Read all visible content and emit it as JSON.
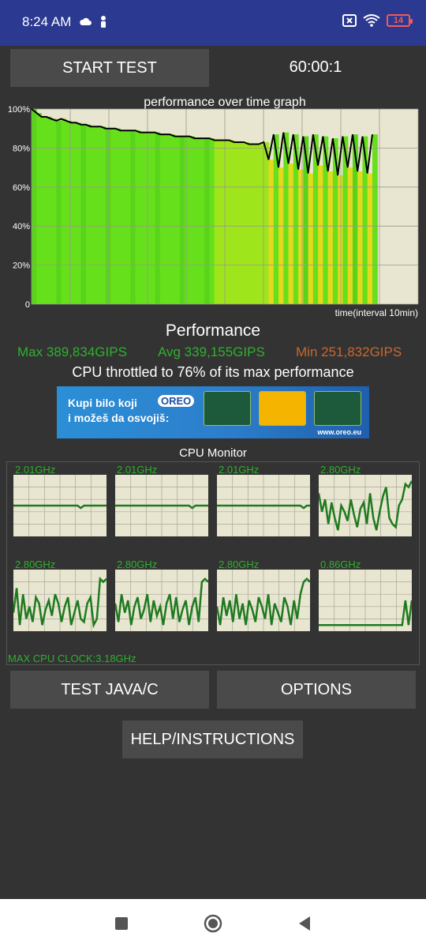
{
  "status_bar": {
    "time": "8:24 AM",
    "icons_left": [
      "cloud-icon",
      "person-pin-icon"
    ],
    "icons_right": [
      "no-sim-icon",
      "wifi-icon",
      "battery-icon"
    ],
    "battery_level": "14",
    "battery_color": "#f05a5a"
  },
  "controls": {
    "start_label": "START TEST",
    "timer": "60:00:1"
  },
  "perf_graph": {
    "title": "performance over time graph",
    "y_ticks": [
      "100%",
      "80%",
      "60%",
      "40%",
      "20%",
      "0"
    ],
    "x_label": "time(interval 10min)"
  },
  "chart_data": {
    "type": "line",
    "title": "performance over time graph",
    "xlabel": "time(interval 10min)",
    "ylabel": "",
    "ylim": [
      0,
      100
    ],
    "grid": true,
    "series": [
      {
        "values": [
          100,
          98,
          96,
          96,
          95,
          94,
          95,
          94,
          93,
          93,
          92,
          92,
          91,
          91,
          91,
          90,
          90,
          90,
          89,
          89,
          89,
          89,
          88,
          88,
          88,
          88,
          87,
          87,
          87,
          86,
          86,
          86,
          86,
          85,
          85,
          85,
          85,
          84,
          84,
          84,
          84,
          83,
          83,
          83,
          82,
          82,
          82,
          83,
          74,
          87,
          70,
          88,
          72,
          87,
          69,
          86,
          67,
          87,
          71,
          86,
          68,
          85,
          66,
          86,
          70,
          87,
          68,
          86,
          67,
          87
        ]
      }
    ]
  },
  "performance": {
    "title": "Performance",
    "max": "Max 389,834GIPS",
    "avg": "Avg 339,155GIPS",
    "min": "Min 251,832GIPS",
    "throttle": "CPU throttled to 76% of its max performance",
    "max_color": "#2db12d",
    "min_color": "#c9672e"
  },
  "ad": {
    "line1": "Kupi bilo koji",
    "brand": "OREO",
    "line2": "i možeš da osvojiš:",
    "url": "www.oreo.eu"
  },
  "cpu_monitor": {
    "title": "CPU Monitor",
    "cores": [
      {
        "freq": "2.01GHz",
        "values": [
          50,
          50,
          50,
          50,
          50,
          50,
          50,
          50,
          50,
          50,
          50,
          50,
          50,
          50,
          50,
          50,
          50,
          50,
          50,
          50,
          50,
          46,
          50,
          50,
          50,
          50,
          50,
          50,
          50,
          50
        ]
      },
      {
        "freq": "2.01GHz",
        "values": [
          50,
          50,
          50,
          50,
          50,
          50,
          50,
          50,
          50,
          50,
          50,
          50,
          50,
          50,
          50,
          50,
          50,
          50,
          50,
          50,
          50,
          50,
          50,
          50,
          46,
          50,
          50,
          50,
          50,
          50
        ]
      },
      {
        "freq": "2.01GHz",
        "values": [
          50,
          50,
          50,
          50,
          50,
          50,
          50,
          50,
          50,
          50,
          50,
          50,
          50,
          50,
          50,
          50,
          50,
          50,
          50,
          50,
          50,
          50,
          50,
          50,
          50,
          50,
          50,
          46,
          50,
          50
        ]
      },
      {
        "freq": "2.80GHz",
        "values": [
          70,
          40,
          60,
          20,
          55,
          30,
          10,
          50,
          40,
          25,
          60,
          35,
          15,
          45,
          55,
          20,
          70,
          30,
          10,
          40,
          65,
          80,
          30,
          20,
          15,
          50,
          60,
          85,
          80,
          90
        ]
      },
      {
        "freq": "2.80GHz",
        "values": [
          30,
          70,
          10,
          60,
          20,
          40,
          15,
          55,
          45,
          10,
          35,
          50,
          25,
          60,
          45,
          15,
          40,
          55,
          10,
          30,
          50,
          20,
          15,
          45,
          55,
          10,
          20,
          85,
          80,
          85
        ]
      },
      {
        "freq": "2.80GHz",
        "values": [
          45,
          15,
          60,
          30,
          50,
          10,
          40,
          55,
          20,
          35,
          60,
          15,
          50,
          25,
          40,
          10,
          45,
          60,
          20,
          55,
          15,
          35,
          50,
          10,
          40,
          55,
          15,
          80,
          85,
          80
        ]
      },
      {
        "freq": "2.80GHz",
        "values": [
          40,
          10,
          55,
          25,
          50,
          15,
          60,
          20,
          45,
          10,
          50,
          35,
          15,
          55,
          40,
          20,
          60,
          10,
          45,
          30,
          15,
          55,
          40,
          10,
          50,
          20,
          60,
          80,
          85,
          80
        ]
      },
      {
        "freq": "0.86GHz",
        "values": [
          10,
          10,
          10,
          10,
          10,
          10,
          10,
          10,
          10,
          10,
          10,
          10,
          10,
          10,
          10,
          10,
          10,
          10,
          10,
          10,
          10,
          10,
          10,
          10,
          10,
          10,
          10,
          50,
          10,
          50
        ]
      }
    ],
    "max_clock": "MAX CPU CLOCK:3.18GHz"
  },
  "buttons": {
    "test_java": "TEST JAVA/C",
    "options": "OPTIONS",
    "help": "HELP/INSTRUCTIONS"
  },
  "nav": {
    "icons": [
      "recents-icon",
      "home-icon",
      "back-icon"
    ]
  }
}
